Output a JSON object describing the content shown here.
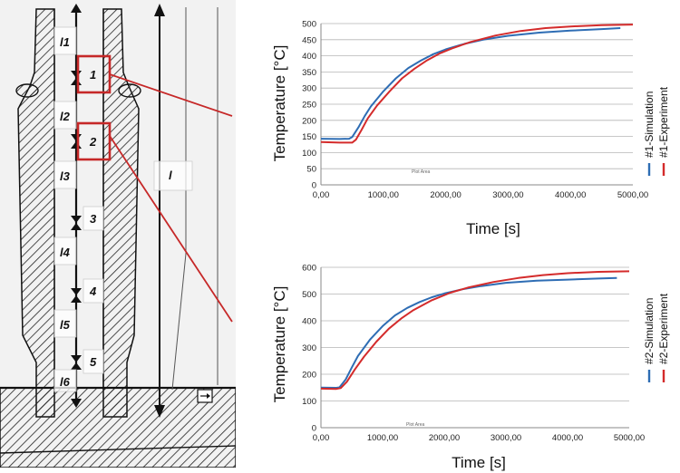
{
  "sketch": {
    "segment_labels": [
      "l1",
      "l2",
      "l3",
      "l4",
      "l5",
      "l6"
    ],
    "point_labels": [
      "1",
      "2",
      "3",
      "4",
      "5"
    ],
    "length_label": "l",
    "colors": {
      "line": "#111111",
      "highlight": "#c62828",
      "paper": "#f4f4f4"
    }
  },
  "chart_data": [
    {
      "type": "line",
      "title": "",
      "xlabel": "Time [s]",
      "ylabel": "Temperature [°C]",
      "xlim": [
        0,
        5000
      ],
      "ylim": [
        0,
        500
      ],
      "xticks": [
        "0,00",
        "1000,00",
        "2000,00",
        "3000,00",
        "4000,00",
        "5000,00"
      ],
      "yticks": [
        "0",
        "50",
        "100",
        "150",
        "200",
        "250",
        "300",
        "350",
        "400",
        "450",
        "500"
      ],
      "ytick_values": [
        0,
        50,
        100,
        150,
        200,
        250,
        300,
        350,
        400,
        450,
        500
      ],
      "grid": true,
      "legend": "right",
      "plot_area_label": "Plot Area",
      "series": [
        {
          "name": "#1-Simulation",
          "color": "#2e6db4",
          "points": [
            [
              0,
              143
            ],
            [
              300,
              142
            ],
            [
              450,
              143
            ],
            [
              500,
              148
            ],
            [
              600,
              178
            ],
            [
              700,
              213
            ],
            [
              800,
              243
            ],
            [
              1000,
              290
            ],
            [
              1200,
              330
            ],
            [
              1400,
              362
            ],
            [
              1600,
              385
            ],
            [
              1800,
              405
            ],
            [
              2000,
              420
            ],
            [
              2300,
              437
            ],
            [
              2600,
              450
            ],
            [
              3000,
              462
            ],
            [
              3500,
              472
            ],
            [
              4000,
              478
            ],
            [
              4500,
              483
            ],
            [
              4800,
              486
            ]
          ]
        },
        {
          "name": "#1-Experiment",
          "color": "#d42b2b",
          "points": [
            [
              0,
              133
            ],
            [
              300,
              131
            ],
            [
              500,
              131
            ],
            [
              560,
              140
            ],
            [
              650,
              170
            ],
            [
              750,
              206
            ],
            [
              900,
              246
            ],
            [
              1100,
              290
            ],
            [
              1300,
              330
            ],
            [
              1500,
              360
            ],
            [
              1700,
              386
            ],
            [
              1900,
              407
            ],
            [
              2100,
              423
            ],
            [
              2400,
              443
            ],
            [
              2800,
              463
            ],
            [
              3200,
              477
            ],
            [
              3600,
              486
            ],
            [
              4000,
              491
            ],
            [
              4500,
              495
            ],
            [
              5000,
              497
            ]
          ]
        }
      ]
    },
    {
      "type": "line",
      "title": "",
      "xlabel": "Time [s]",
      "ylabel": "Temperature [°C]",
      "xlim": [
        0,
        5000
      ],
      "ylim": [
        0,
        600
      ],
      "xticks": [
        "0,00",
        "1000,00",
        "2000,00",
        "3000,00",
        "4000,00",
        "5000,00"
      ],
      "yticks": [
        "0",
        "100",
        "200",
        "300",
        "400",
        "500",
        "600"
      ],
      "ytick_values": [
        0,
        100,
        200,
        300,
        400,
        500,
        600
      ],
      "grid": true,
      "legend": "right",
      "plot_area_label": "Plot Area",
      "series": [
        {
          "name": "#2-Simulation",
          "color": "#2e6db4",
          "points": [
            [
              0,
              150
            ],
            [
              250,
              149
            ],
            [
              300,
              151
            ],
            [
              400,
              180
            ],
            [
              500,
              225
            ],
            [
              600,
              268
            ],
            [
              800,
              331
            ],
            [
              1000,
              380
            ],
            [
              1200,
              420
            ],
            [
              1400,
              448
            ],
            [
              1600,
              470
            ],
            [
              1800,
              488
            ],
            [
              2000,
              502
            ],
            [
              2300,
              518
            ],
            [
              2600,
              530
            ],
            [
              3000,
              542
            ],
            [
              3500,
              550
            ],
            [
              4000,
              554
            ],
            [
              4500,
              558
            ],
            [
              4800,
              560
            ]
          ]
        },
        {
          "name": "#2-Experiment",
          "color": "#d42b2b",
          "points": [
            [
              0,
              146
            ],
            [
              250,
              145
            ],
            [
              320,
              148
            ],
            [
              420,
              172
            ],
            [
              550,
              218
            ],
            [
              700,
              266
            ],
            [
              900,
              322
            ],
            [
              1100,
              370
            ],
            [
              1300,
              408
            ],
            [
              1500,
              440
            ],
            [
              1800,
              477
            ],
            [
              2100,
              505
            ],
            [
              2400,
              525
            ],
            [
              2800,
              545
            ],
            [
              3200,
              560
            ],
            [
              3600,
              571
            ],
            [
              4000,
              578
            ],
            [
              4500,
              583
            ],
            [
              5000,
              585
            ]
          ]
        }
      ]
    }
  ]
}
